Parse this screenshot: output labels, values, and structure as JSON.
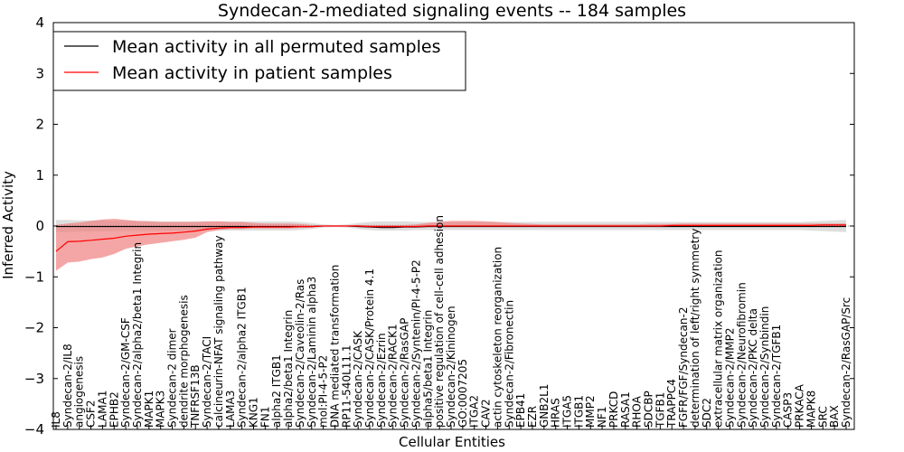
{
  "chart_data": {
    "type": "line",
    "title": "Syndecan-2-mediated signaling events -- 184 samples",
    "xlabel": "Cellular Entities",
    "ylabel": "Inferred Activity",
    "ylim": [
      -4,
      4
    ],
    "yticks": [
      4,
      3,
      2,
      1,
      0,
      -1,
      -2,
      -3,
      -4
    ],
    "legend_position": "top-left",
    "colors": {
      "permuted": "#000000",
      "patient": "#ff0000",
      "patient_band": "#f08080",
      "permuted_band": "#c8c8c8"
    },
    "categories": [
      "IL8",
      "Syndecan-2/IL8",
      "angiogenesis",
      "CSF2",
      "LAMA1",
      "EPHB2",
      "Syndecan-2/GM-CSF",
      "Syndecan-2/alpha2/beta1 Integrin",
      "MAPK1",
      "MAPK3",
      "Syndecan-2 dimer",
      "dendrite morphogenesis",
      "TNFRSF13B",
      "Syndecan-2/TACI",
      "calcineurin-NFAT signaling pathway",
      "LAMA3",
      "Syndecan-2/alpha2 ITGB1",
      "KNG1",
      "FN1",
      "alpha2 ITGB1",
      "alpha2/beta1 Integrin",
      "Syndecan-2/Caveolin-2/Ras",
      "Syndecan-2/Laminin alpha3",
      "mol:PI-4-5-P2",
      "DNA mediated transformation",
      "RP11-540L11.1",
      "Syndecan-2/CASK",
      "Syndecan-2/CASK/Protein 4.1",
      "Syndecan-2/Ezrin",
      "Syndecan-2/RACK1",
      "Syndecan-2/RasGAP",
      "Syndecan-2/Syntenin/PI-4-5-P2",
      "alpha5/beta1 Integrin",
      "positive regulation of cell-cell adhesion",
      "Syndecan-2/Kininogen",
      "GO:0007205",
      "ITGA2",
      "CAV2",
      "actin cytoskeleton reorganization",
      "Syndecan-2/Fibronectin",
      "EPB41",
      "EZR",
      "GNB2L1",
      "HRAS",
      "ITGA5",
      "ITGB1",
      "MMP2",
      "NF1",
      "PRKCD",
      "RASA1",
      "RHOA",
      "SDCBP",
      "TGFB1",
      "TRAPPC4",
      "FGFR/FGF/Syndecan-2",
      "determination of left/right symmetry",
      "SDC2",
      "extracellular matrix organization",
      "Syndecan-2/MMP2",
      "Syndecan-2/Neurofibromin",
      "Syndecan-2/PKC delta",
      "Syndecan-2/Synbindin",
      "Syndecan-2/TGFB1",
      "CASP3",
      "PRKACA",
      "MAPK8",
      "SRC",
      "BAX",
      "Syndecan-2/RasGAP/Src"
    ],
    "series": [
      {
        "name": "Mean activity in all permuted samples",
        "values": [
          -0.01,
          -0.01,
          -0.01,
          -0.01,
          -0.01,
          -0.01,
          -0.01,
          -0.01,
          -0.01,
          -0.01,
          -0.01,
          -0.01,
          -0.01,
          -0.01,
          -0.01,
          -0.01,
          -0.01,
          -0.01,
          -0.01,
          -0.01,
          -0.01,
          -0.01,
          -0.01,
          0.0,
          0.0,
          0.0,
          -0.01,
          -0.02,
          -0.03,
          -0.03,
          -0.02,
          -0.02,
          -0.01,
          -0.01,
          -0.01,
          -0.01,
          -0.01,
          -0.01,
          -0.01,
          -0.01,
          -0.01,
          -0.01,
          -0.01,
          -0.01,
          -0.01,
          -0.01,
          -0.01,
          -0.01,
          -0.01,
          -0.01,
          -0.01,
          -0.01,
          -0.01,
          -0.01,
          -0.01,
          -0.01,
          -0.01,
          -0.01,
          -0.01,
          -0.01,
          -0.01,
          -0.01,
          -0.01,
          -0.01,
          -0.01,
          -0.01,
          -0.01,
          -0.01,
          -0.01
        ],
        "band_low": [
          -0.12,
          -0.12,
          -0.11,
          -0.11,
          -0.11,
          -0.1,
          -0.1,
          -0.1,
          -0.1,
          -0.09,
          -0.09,
          -0.09,
          -0.09,
          -0.09,
          -0.09,
          -0.09,
          -0.09,
          -0.09,
          -0.09,
          -0.09,
          -0.09,
          -0.08,
          -0.06,
          -0.03,
          -0.02,
          -0.03,
          -0.06,
          -0.08,
          -0.09,
          -0.09,
          -0.09,
          -0.08,
          -0.08,
          -0.08,
          -0.08,
          -0.08,
          -0.08,
          -0.08,
          -0.08,
          -0.08,
          -0.08,
          -0.08,
          -0.08,
          -0.08,
          -0.08,
          -0.08,
          -0.08,
          -0.08,
          -0.08,
          -0.08,
          -0.08,
          -0.08,
          -0.08,
          -0.08,
          -0.08,
          -0.08,
          -0.08,
          -0.08,
          -0.08,
          -0.08,
          -0.08,
          -0.08,
          -0.08,
          -0.08,
          -0.08,
          -0.09,
          -0.1,
          -0.11,
          -0.12
        ],
        "band_high": [
          0.12,
          0.12,
          0.11,
          0.11,
          0.11,
          0.1,
          0.1,
          0.1,
          0.1,
          0.09,
          0.09,
          0.09,
          0.09,
          0.09,
          0.09,
          0.09,
          0.09,
          0.09,
          0.09,
          0.09,
          0.09,
          0.08,
          0.06,
          0.03,
          0.02,
          0.03,
          0.06,
          0.08,
          0.09,
          0.09,
          0.09,
          0.08,
          0.08,
          0.08,
          0.08,
          0.08,
          0.08,
          0.08,
          0.08,
          0.08,
          0.08,
          0.08,
          0.08,
          0.08,
          0.08,
          0.08,
          0.08,
          0.08,
          0.08,
          0.08,
          0.08,
          0.08,
          0.08,
          0.08,
          0.08,
          0.08,
          0.08,
          0.08,
          0.08,
          0.08,
          0.08,
          0.08,
          0.08,
          0.08,
          0.08,
          0.09,
          0.1,
          0.11,
          0.12
        ]
      },
      {
        "name": "Mean activity in patient samples",
        "values": [
          -0.5,
          -0.31,
          -0.3,
          -0.28,
          -0.26,
          -0.24,
          -0.2,
          -0.18,
          -0.16,
          -0.15,
          -0.14,
          -0.12,
          -0.1,
          -0.06,
          -0.04,
          -0.03,
          -0.03,
          -0.02,
          -0.02,
          -0.02,
          -0.02,
          -0.01,
          -0.01,
          0.0,
          0.0,
          0.0,
          0.0,
          -0.01,
          -0.01,
          -0.01,
          -0.01,
          -0.01,
          0.0,
          0.0,
          0.0,
          0.0,
          0.0,
          0.0,
          0.0,
          0.0,
          0.0,
          0.0,
          0.0,
          0.0,
          0.0,
          0.0,
          0.0,
          0.0,
          0.0,
          0.0,
          0.0,
          0.0,
          0.0,
          0.01,
          0.01,
          0.01,
          0.01,
          0.01,
          0.01,
          0.01,
          0.01,
          0.01,
          0.01,
          0.01,
          0.01,
          0.01,
          0.02,
          0.02,
          0.02
        ],
        "band_low": [
          -0.88,
          -0.72,
          -0.7,
          -0.65,
          -0.62,
          -0.55,
          -0.45,
          -0.4,
          -0.36,
          -0.33,
          -0.3,
          -0.27,
          -0.23,
          -0.12,
          -0.08,
          -0.06,
          -0.06,
          -0.05,
          -0.05,
          -0.05,
          -0.05,
          -0.04,
          -0.03,
          -0.01,
          -0.01,
          -0.01,
          -0.02,
          -0.03,
          -0.03,
          -0.03,
          -0.03,
          -0.03,
          -0.02,
          -0.02,
          -0.02,
          -0.02,
          -0.01,
          -0.01,
          -0.01,
          -0.01,
          -0.01,
          -0.01,
          -0.01,
          -0.01,
          -0.01,
          -0.01,
          -0.01,
          -0.01,
          -0.01,
          -0.01,
          -0.01,
          -0.01,
          -0.01,
          -0.01,
          -0.01,
          -0.01,
          -0.01,
          -0.01,
          -0.01,
          -0.01,
          -0.01,
          -0.01,
          -0.01,
          -0.01,
          -0.01,
          -0.01,
          -0.01,
          -0.01,
          -0.01
        ],
        "band_high": [
          0.02,
          0.05,
          0.07,
          0.1,
          0.13,
          0.14,
          0.12,
          0.1,
          0.09,
          0.08,
          0.08,
          0.08,
          0.08,
          0.09,
          0.09,
          0.08,
          0.08,
          0.06,
          0.05,
          0.05,
          0.05,
          0.04,
          0.02,
          0.01,
          0.01,
          0.01,
          0.02,
          0.02,
          0.02,
          0.02,
          0.02,
          0.03,
          0.06,
          0.08,
          0.1,
          0.1,
          0.1,
          0.09,
          0.08,
          0.06,
          0.05,
          0.04,
          0.03,
          0.03,
          0.03,
          0.03,
          0.03,
          0.03,
          0.03,
          0.03,
          0.03,
          0.04,
          0.04,
          0.04,
          0.05,
          0.05,
          0.05,
          0.05,
          0.05,
          0.05,
          0.05,
          0.05,
          0.05,
          0.05,
          0.05,
          0.05,
          0.05,
          0.05,
          0.05
        ]
      }
    ]
  }
}
